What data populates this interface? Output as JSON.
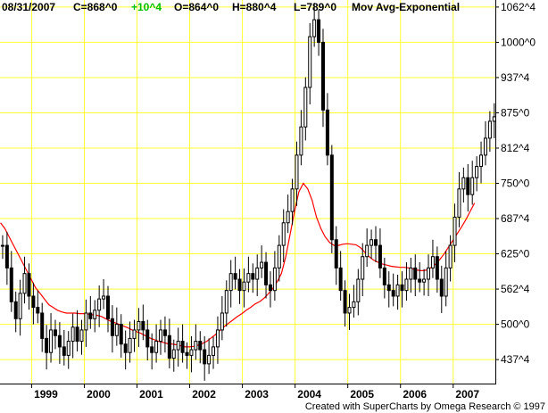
{
  "header": {
    "date": "08/31/2007",
    "close": "C=868^0",
    "change": "+10^4",
    "open": "O=864^0",
    "high": "H=880^4",
    "low": "L=789^0",
    "indicator": "Mov Avg-Exponential"
  },
  "footer": {
    "credit": "Created with SuperCharts by Omega Research © 1997"
  },
  "colors": {
    "grid": "#ffff33",
    "bars": "#000000",
    "moving_average": "#ff0000",
    "change_positive": "#00c000"
  },
  "chart_data": {
    "type": "candlestick",
    "title": "",
    "xlabel": "",
    "ylabel": "",
    "ylim": [
      395,
      1075
    ],
    "grid": true,
    "y_ticks": [
      {
        "value": 437.5,
        "label": "437^4"
      },
      {
        "value": 500,
        "label": "500^0"
      },
      {
        "value": 562.5,
        "label": "562^4"
      },
      {
        "value": 625,
        "label": "625^0"
      },
      {
        "value": 687.5,
        "label": "687^4"
      },
      {
        "value": 750,
        "label": "750^0"
      },
      {
        "value": 812.5,
        "label": "812^4"
      },
      {
        "value": 875,
        "label": "875^0"
      },
      {
        "value": 937.5,
        "label": "937^4"
      },
      {
        "value": 1000,
        "label": "1000^0"
      },
      {
        "value": 1062.5,
        "label": "1062^4"
      }
    ],
    "x_ticks": [
      "1999",
      "2000",
      "2001",
      "2002",
      "2003",
      "2004",
      "2005",
      "2006",
      "2007"
    ],
    "x_tick_start": 1999,
    "x_axis_start_year": 1998.4,
    "x_axis_end_year": 2007.8,
    "bar_interval_years": 0.0833,
    "bar_start_year": 1998.45,
    "closes": [
      640,
      600,
      540,
      510,
      555,
      590,
      550,
      530,
      520,
      475,
      450,
      490,
      480,
      460,
      445,
      470,
      495,
      470,
      490,
      520,
      510,
      525,
      545,
      550,
      510,
      480,
      500,
      465,
      450,
      475,
      490,
      505,
      490,
      460,
      450,
      470,
      490,
      480,
      440,
      455,
      470,
      450,
      445,
      455,
      470,
      455,
      430,
      445,
      460,
      490,
      520,
      560,
      590,
      580,
      560,
      575,
      590,
      580,
      600,
      610,
      570,
      560,
      600,
      640,
      680,
      700,
      740,
      800,
      850,
      920,
      1010,
      1040,
      1000,
      880,
      800,
      650,
      600,
      560,
      520,
      530,
      540,
      580,
      620,
      640,
      650,
      640,
      600,
      570,
      560,
      550,
      570,
      560,
      580,
      600,
      580,
      575,
      580,
      600,
      620,
      580,
      550,
      600,
      640,
      690,
      740,
      760,
      730,
      760,
      780,
      800,
      830,
      860,
      868
    ],
    "series": [
      {
        "name": "",
        "type": "line",
        "values": [
          680,
          670,
          655,
          640,
          625,
          610,
          595,
          580,
          565,
          555,
          545,
          535,
          530,
          525,
          522,
          520,
          520,
          520,
          519,
          519,
          518,
          517,
          516,
          514,
          510,
          506,
          503,
          500,
          497,
          494,
          490,
          487,
          484,
          480,
          476,
          473,
          470,
          468,
          466,
          465,
          464,
          462,
          460,
          460,
          461,
          463,
          466,
          470,
          476,
          482,
          489,
          496,
          502,
          508,
          514,
          519,
          525,
          530,
          536,
          540,
          546,
          554,
          563,
          575,
          590,
          620,
          660,
          700,
          735,
          750,
          740,
          720,
          690,
          670,
          655,
          645,
          640,
          640,
          642,
          643,
          642,
          641,
          636,
          628,
          620,
          614,
          610,
          607,
          605,
          603,
          602,
          601,
          601,
          600,
          598,
          596,
          595,
          596,
          600,
          606,
          614,
          624,
          636,
          648,
          660,
          672,
          685,
          700,
          715
        ]
      }
    ]
  }
}
